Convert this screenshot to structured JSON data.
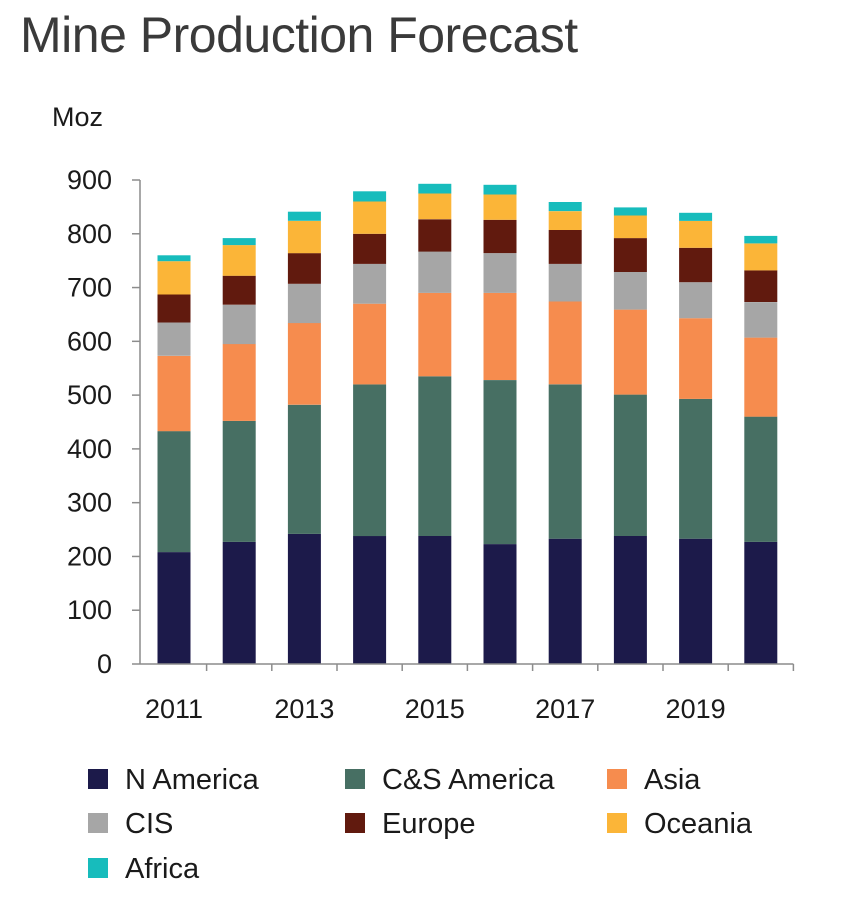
{
  "chart_data": {
    "type": "bar",
    "stacked": true,
    "title": "Mine Production Forecast",
    "ylabel": "Moz",
    "xlabel": "",
    "ylim": [
      0,
      900
    ],
    "yticks": [
      0,
      100,
      200,
      300,
      400,
      500,
      600,
      700,
      800,
      900
    ],
    "categories": [
      "2011",
      "2012",
      "2013",
      "2014",
      "2015",
      "2016",
      "2017",
      "2018",
      "2019",
      "2020"
    ],
    "x_tick_labels_shown": [
      "2011",
      "2013",
      "2015",
      "2017",
      "2019"
    ],
    "legend_position": "bottom",
    "grid": false,
    "series": [
      {
        "name": "N America",
        "color": "#1c1a4a",
        "values": [
          208,
          227,
          242,
          238,
          238,
          223,
          233,
          238,
          233,
          227
        ]
      },
      {
        "name": "C&S America",
        "color": "#476f63",
        "values": [
          225,
          225,
          240,
          282,
          297,
          305,
          287,
          263,
          260,
          233
        ]
      },
      {
        "name": "Asia",
        "color": "#f68c4e",
        "values": [
          140,
          143,
          152,
          150,
          155,
          162,
          154,
          158,
          150,
          147
        ]
      },
      {
        "name": "CIS",
        "color": "#a6a6a6",
        "values": [
          62,
          73,
          73,
          74,
          77,
          74,
          70,
          70,
          67,
          66
        ]
      },
      {
        "name": "Europe",
        "color": "#611a0e",
        "values": [
          52,
          54,
          57,
          56,
          60,
          62,
          63,
          63,
          64,
          59
        ]
      },
      {
        "name": "Oceania",
        "color": "#fbb538",
        "values": [
          62,
          57,
          60,
          60,
          48,
          47,
          35,
          42,
          50,
          50
        ]
      },
      {
        "name": "Africa",
        "color": "#17bcbc",
        "values": [
          11,
          13,
          17,
          19,
          18,
          18,
          17,
          15,
          15,
          14
        ]
      }
    ]
  }
}
